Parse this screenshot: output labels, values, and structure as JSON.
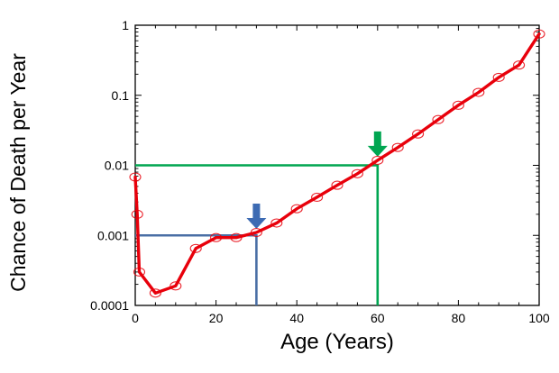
{
  "chart_data": {
    "type": "line",
    "xlabel": "Age (Years)",
    "ylabel": "Chance of Death per Year",
    "xlim": [
      0,
      100
    ],
    "ylim": [
      0.0001,
      1
    ],
    "y_scale": "log",
    "x_ticks": [
      0,
      20,
      40,
      60,
      80,
      100
    ],
    "y_ticks": [
      0.0001,
      0.001,
      0.01,
      0.1,
      1
    ],
    "x_tick_labels": [
      "0",
      "20",
      "40",
      "60",
      "80",
      "100"
    ],
    "y_tick_labels": [
      "0.0001",
      "0.001",
      "0.01",
      "0.1",
      "1"
    ],
    "grid": false,
    "series": [
      {
        "color": "#e8000b",
        "marker": "open-circle",
        "x": [
          0,
          0.5,
          1,
          5,
          10,
          15,
          20,
          25,
          30,
          35,
          40,
          45,
          50,
          55,
          60,
          65,
          70,
          75,
          80,
          85,
          90,
          95,
          100
        ],
        "y": [
          0.0068,
          0.002,
          0.0003,
          0.00015,
          0.00019,
          0.00065,
          0.00093,
          0.00093,
          0.0011,
          0.0015,
          0.0024,
          0.0035,
          0.0052,
          0.0076,
          0.0118,
          0.018,
          0.028,
          0.045,
          0.072,
          0.11,
          0.18,
          0.27,
          0.75
        ]
      }
    ],
    "annotations": [
      {
        "type": "reference-lines",
        "x": 30,
        "y": 0.001,
        "color": "#4a6fa5"
      },
      {
        "type": "arrow-down",
        "x": 30,
        "y": 0.0011,
        "color": "#3d6bb3"
      },
      {
        "type": "reference-lines",
        "x": 60,
        "y": 0.01,
        "color": "#00a651"
      },
      {
        "type": "arrow-down",
        "x": 60,
        "y": 0.0118,
        "color": "#00a651"
      }
    ]
  }
}
